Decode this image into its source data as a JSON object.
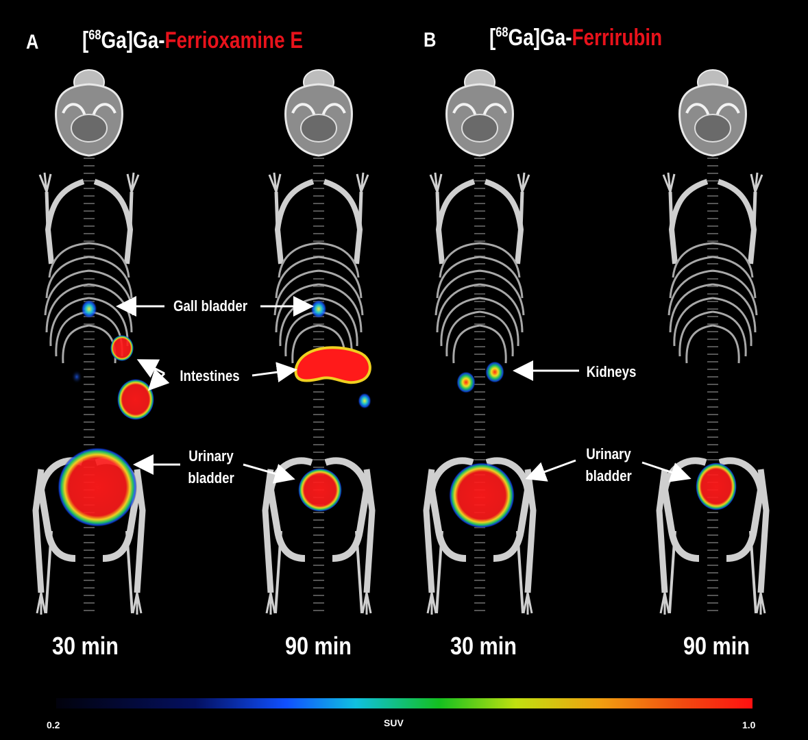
{
  "panels": [
    {
      "letter": "A",
      "title_prefix": "[",
      "title_sup": "68",
      "title_mid": "Ga]Ga-",
      "title_name": "Ferrioxamine E",
      "times": [
        "30 min",
        "90 min"
      ]
    },
    {
      "letter": "B",
      "title_prefix": "[",
      "title_sup": "68",
      "title_mid": "Ga]Ga-",
      "title_name": "Ferrirubin",
      "times": [
        "30 min",
        "90 min"
      ]
    }
  ],
  "labels": {
    "gall_bladder": "Gall bladder",
    "intestines": "Intestines",
    "kidneys": "Kidneys",
    "urinary_a_1": "Urinary",
    "urinary_a_2": "bladder",
    "urinary_b_1": "Urinary",
    "urinary_b_2": "bladder"
  },
  "colorbar": {
    "min": "0.2",
    "max": "1.0",
    "label": "SUV"
  },
  "colors": {
    "background": "#000000",
    "title_accent": "#e8121b",
    "hot": "#ff1a1a",
    "bone": "#d8d8d8"
  }
}
